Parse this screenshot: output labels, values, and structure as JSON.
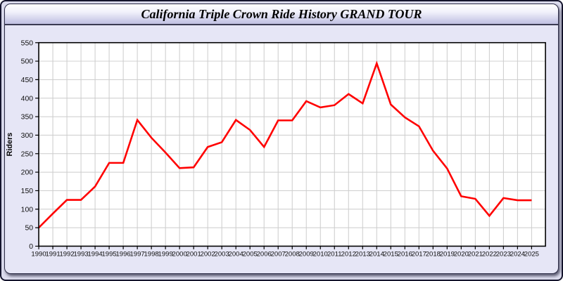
{
  "window": {
    "title": "California Triple Crown Ride History GRAND TOUR"
  },
  "colors": {
    "line": "#ff0000",
    "plot_background": "#ffffff",
    "gridline": "#cccccc",
    "axis": "#000000",
    "tick_label": "#111111",
    "panel_background": "#e6e6f6"
  },
  "chart_data": {
    "type": "line",
    "title": "California Triple Crown Ride History GRAND TOUR",
    "xlabel": "",
    "ylabel": "Riders",
    "x": [
      1990,
      1991,
      1992,
      1993,
      1994,
      1995,
      1996,
      1997,
      1998,
      1999,
      2000,
      2001,
      2002,
      2003,
      2004,
      2005,
      2006,
      2007,
      2008,
      2009,
      2010,
      2011,
      2012,
      2013,
      2014,
      2015,
      2016,
      2017,
      2018,
      2019,
      2020,
      2021,
      2022,
      2023,
      2024,
      2025
    ],
    "series": [
      {
        "name": "Riders",
        "color": "#ff0000",
        "values": [
          50,
          88,
          125,
          125,
          161,
          225,
          225,
          341,
          293,
          253,
          211,
          213,
          268,
          281,
          341,
          314,
          268,
          340,
          340,
          392,
          375,
          381,
          411,
          386,
          494,
          383,
          348,
          324,
          258,
          210,
          135,
          128,
          82,
          130,
          124,
          124
        ]
      }
    ],
    "ylim": [
      0,
      550
    ],
    "ytick_step": 50,
    "xtick_every": 1,
    "grid": true,
    "legend_position": "none"
  }
}
